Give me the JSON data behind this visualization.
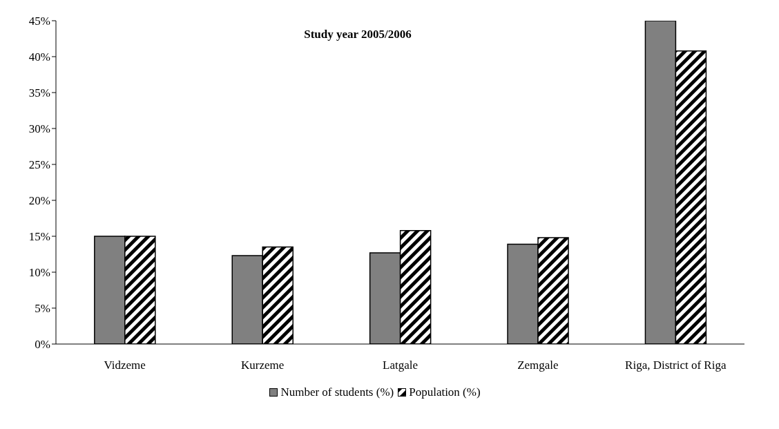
{
  "chart_data": {
    "type": "bar",
    "title": "Study year 2005/2006",
    "categories": [
      "Vidzeme",
      "Kurzeme",
      "Latgale",
      "Zemgale",
      "Riga, District of Riga"
    ],
    "series": [
      {
        "name": "Number of students (%)",
        "color": "#808080",
        "values": [
          15.0,
          12.3,
          12.7,
          13.9,
          45
        ]
      },
      {
        "name": "Population (%)",
        "color": "#000000",
        "values": [
          15.0,
          13.5,
          15.8,
          14.8,
          40.8
        ]
      }
    ],
    "ylim": [
      0,
      45
    ],
    "yticks": [
      {
        "value": 0,
        "label": "0%"
      },
      {
        "value": 5,
        "label": "5%"
      },
      {
        "value": 10,
        "label": "10%"
      },
      {
        "value": 15,
        "label": "15%"
      },
      {
        "value": 20,
        "label": "20%"
      },
      {
        "value": 25,
        "label": "25%"
      },
      {
        "value": 30,
        "label": "30%"
      },
      {
        "value": 35,
        "label": "35%"
      },
      {
        "value": 40,
        "label": "40%"
      },
      {
        "value": 45,
        "label": "45%"
      }
    ],
    "grid": false,
    "legend": "bottom"
  }
}
